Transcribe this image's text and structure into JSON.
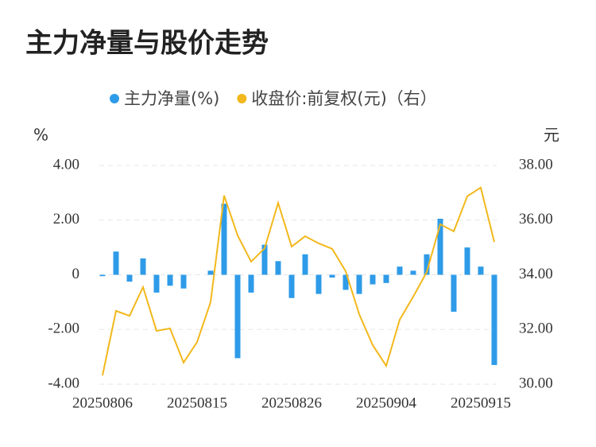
{
  "chart_data": {
    "type": "bar_line",
    "title": "主力净量与股价走势",
    "y_label": "%",
    "y2_label": "元",
    "categories": [
      "20250806",
      null,
      null,
      null,
      null,
      null,
      null,
      "20250815",
      null,
      null,
      null,
      null,
      null,
      null,
      "20250826",
      null,
      null,
      null,
      null,
      null,
      null,
      "20250904",
      null,
      null,
      null,
      null,
      null,
      null,
      "20250915",
      null
    ],
    "series": [
      {
        "name": "主力净量(%)",
        "color": "#2e9be8",
        "type": "bar",
        "values": [
          -0.05,
          0.85,
          -0.25,
          0.6,
          -0.65,
          -0.4,
          -0.5,
          0,
          0.15,
          2.6,
          -3.05,
          -0.65,
          1.1,
          0.5,
          -0.85,
          0.75,
          -0.7,
          -0.1,
          -0.55,
          -0.7,
          -0.35,
          -0.3,
          0.3,
          0.15,
          0.75,
          2.05,
          -1.35,
          1.0,
          0.3,
          -3.3
        ]
      },
      {
        "name": "收盘价:前复权(元)（右）",
        "color": "#f2b81c",
        "type": "line",
        "axis": "y2",
        "values": [
          30.32,
          32.68,
          32.5,
          33.55,
          31.95,
          32.04,
          30.79,
          31.54,
          33.0,
          36.9,
          35.44,
          34.48,
          34.97,
          36.63,
          35.03,
          35.41,
          35.15,
          34.95,
          34.13,
          32.56,
          31.43,
          30.67,
          32.36,
          33.2,
          34.1,
          35.85,
          35.59,
          36.87,
          37.19,
          35.2
        ]
      }
    ],
    "ylim": [
      -4,
      4
    ],
    "yticks": [
      {
        "value": 4,
        "label": "4.00"
      },
      {
        "value": 2,
        "label": "2.00"
      },
      0,
      {
        "value": -2,
        "label": "-2.00"
      },
      {
        "value": -4,
        "label": "-4.00"
      }
    ],
    "y2lim": [
      30,
      38
    ],
    "y2ticks": [
      {
        "value": 38,
        "label": "38.00"
      },
      {
        "value": 36,
        "label": "36.00"
      },
      {
        "value": 34,
        "label": "34.00"
      },
      {
        "value": 32,
        "label": "32.00"
      },
      {
        "value": 30,
        "label": "30.00"
      }
    ],
    "grid": true
  }
}
